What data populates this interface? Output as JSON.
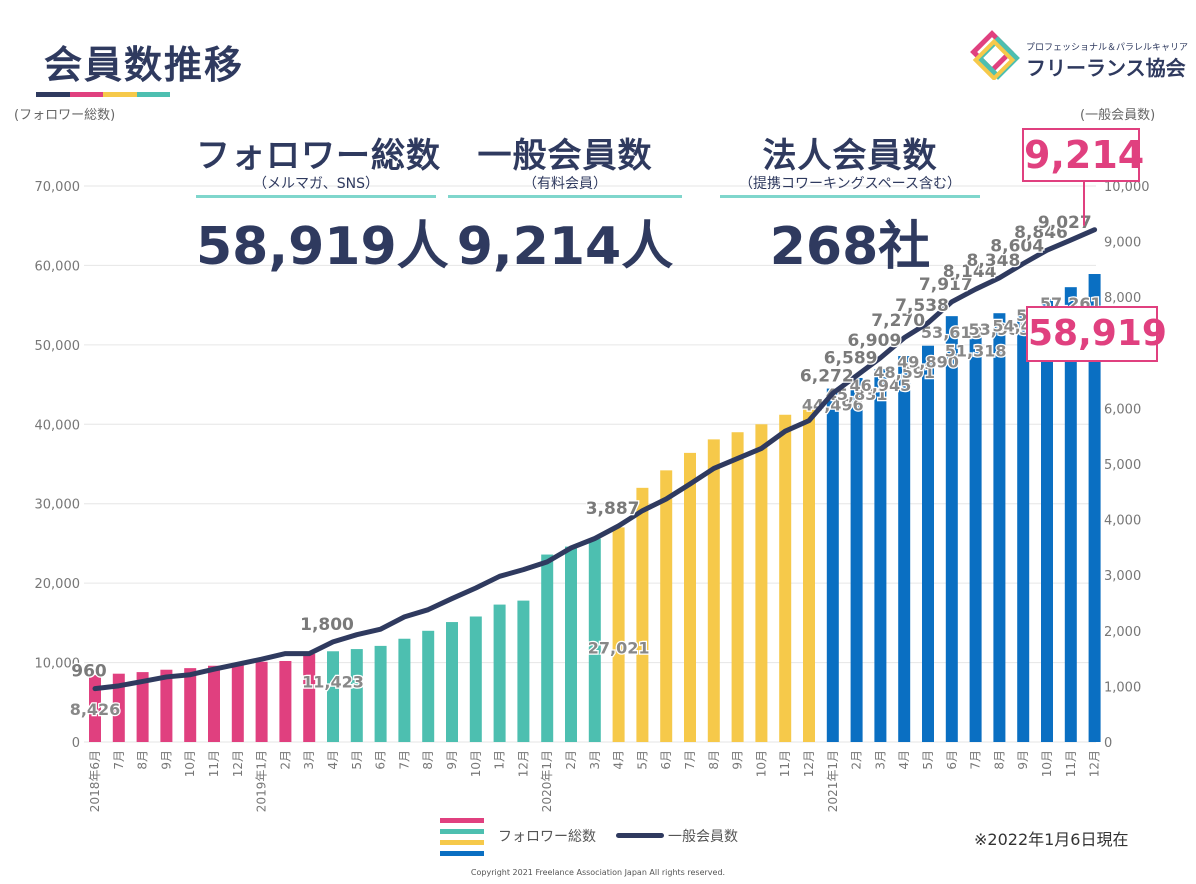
{
  "page": {
    "title": "会員数推移",
    "title_bar_colors": [
      "#2f3a5f",
      "#e0407f",
      "#f6c94a",
      "#4dbfb0"
    ],
    "logo_sub": "プロフェッショナル＆パラレルキャリア",
    "logo_main": "フリーランス協会",
    "left_axis_name": "(フォロワー総数)",
    "right_axis_name": "(一般会員数)",
    "as_of": "※2022年1月6日現在",
    "copyright": "Copyright 2021 Freelance Association Japan  All rights reserved."
  },
  "kpis": [
    {
      "label": "フォロワー総数",
      "sub": "（メルマガ、SNS）",
      "value": "58,919人"
    },
    {
      "label": "一般会員数",
      "sub": "（有料会員）",
      "value": "9,214人"
    },
    {
      "label": "法人会員数",
      "sub": "（提携コワーキングスペース含む）",
      "value": "268社"
    }
  ],
  "callouts": {
    "members": "9,214",
    "followers": "58,919"
  },
  "legend": {
    "bars": "フォロワー総数",
    "line": "一般会員数"
  },
  "chart_data": {
    "type": "bar",
    "categories": [
      "2018年6月",
      "7月",
      "8月",
      "9月",
      "10月",
      "11月",
      "12月",
      "2019年1月",
      "2月",
      "3月",
      "4月",
      "5月",
      "6月",
      "7月",
      "8月",
      "9月",
      "10月",
      "1月",
      "12月",
      "2020年1月",
      "2月",
      "3月",
      "4月",
      "5月",
      "6月",
      "7月",
      "8月",
      "9月",
      "10月",
      "11月",
      "12月",
      "2021年1月",
      "2月",
      "3月",
      "4月",
      "5月",
      "6月",
      "7月",
      "8月",
      "9月",
      "10月",
      "11月",
      "12月"
    ],
    "series": [
      {
        "name": "フォロワー総数",
        "axis": "left",
        "type": "bar",
        "values": [
          8426,
          8600,
          8800,
          9100,
          9300,
          9600,
          9800,
          10100,
          10200,
          11100,
          11423,
          11700,
          12100,
          13000,
          14000,
          15100,
          15800,
          17300,
          17800,
          23600,
          24600,
          25600,
          27021,
          32000,
          34200,
          36400,
          38100,
          39000,
          40000,
          41200,
          42100,
          44496,
          45831,
          46945,
          48591,
          49890,
          53613,
          51318,
          53985,
          54468,
          55780,
          57261,
          58919
        ]
      },
      {
        "name": "一般会員数",
        "axis": "right",
        "type": "line",
        "values": [
          960,
          1010,
          1090,
          1170,
          1210,
          1310,
          1400,
          1490,
          1590,
          1590,
          1800,
          1930,
          2030,
          2250,
          2380,
          2580,
          2770,
          2980,
          3100,
          3240,
          3490,
          3660,
          3887,
          4160,
          4370,
          4640,
          4920,
          5100,
          5280,
          5590,
          5780,
          6272,
          6589,
          6909,
          7270,
          7538,
          7917,
          8144,
          8348,
          8604,
          8846,
          9027,
          9214
        ]
      }
    ],
    "bar_colors": [
      "#e0407f",
      "#e0407f",
      "#e0407f",
      "#e0407f",
      "#e0407f",
      "#e0407f",
      "#e0407f",
      "#e0407f",
      "#e0407f",
      "#e0407f",
      "#4dbfb0",
      "#4dbfb0",
      "#4dbfb0",
      "#4dbfb0",
      "#4dbfb0",
      "#4dbfb0",
      "#4dbfb0",
      "#4dbfb0",
      "#4dbfb0",
      "#4dbfb0",
      "#4dbfb0",
      "#4dbfb0",
      "#f6c94a",
      "#f6c94a",
      "#f6c94a",
      "#f6c94a",
      "#f6c94a",
      "#f6c94a",
      "#f6c94a",
      "#f6c94a",
      "#f6c94a",
      "#0a6fc2",
      "#0a6fc2",
      "#0a6fc2",
      "#0a6fc2",
      "#0a6fc2",
      "#0a6fc2",
      "#0a6fc2",
      "#0a6fc2",
      "#0a6fc2",
      "#0a6fc2",
      "#0a6fc2",
      "#0a6fc2"
    ],
    "line_color": "#2f3a5f",
    "left_axis": {
      "min": 0,
      "max": 70000,
      "ticks": [
        "0",
        "10,000",
        "20,000",
        "30,000",
        "40,000",
        "50,000",
        "60,000",
        "70,000"
      ]
    },
    "right_axis": {
      "min": 0,
      "max": 10000,
      "ticks": [
        "0",
        "1,000",
        "2,000",
        "3,000",
        "4,000",
        "5,000",
        "6,000",
        "7,000",
        "8,000",
        "9,000",
        "10,000"
      ]
    },
    "bar_labels": [
      {
        "index": 0,
        "text": "8,426"
      },
      {
        "index": 10,
        "text": "11,423"
      },
      {
        "index": 22,
        "text": "27,021"
      },
      {
        "index": 31,
        "text": "44,496"
      },
      {
        "index": 32,
        "text": "45,831"
      },
      {
        "index": 33,
        "text": "46,945"
      },
      {
        "index": 34,
        "text": "48,591"
      },
      {
        "index": 35,
        "text": "49,890"
      },
      {
        "index": 36,
        "text": "53,613"
      },
      {
        "index": 37,
        "text": "51,318"
      },
      {
        "index": 38,
        "text": "53,985"
      },
      {
        "index": 39,
        "text": "54,468"
      },
      {
        "index": 40,
        "text": "55,780"
      },
      {
        "index": 41,
        "text": "57,261"
      }
    ],
    "line_labels": [
      {
        "index": 0,
        "text": "960"
      },
      {
        "index": 10,
        "text": "1,800"
      },
      {
        "index": 22,
        "text": "3,887"
      },
      {
        "index": 31,
        "text": "6,272"
      },
      {
        "index": 32,
        "text": "6,589"
      },
      {
        "index": 33,
        "text": "6,909"
      },
      {
        "index": 34,
        "text": "7,270"
      },
      {
        "index": 35,
        "text": "7,538"
      },
      {
        "index": 36,
        "text": "7,917"
      },
      {
        "index": 37,
        "text": "8,144"
      },
      {
        "index": 38,
        "text": "8,348"
      },
      {
        "index": 39,
        "text": "8,604"
      },
      {
        "index": 40,
        "text": "8,846"
      },
      {
        "index": 41,
        "text": "9,027"
      }
    ]
  }
}
